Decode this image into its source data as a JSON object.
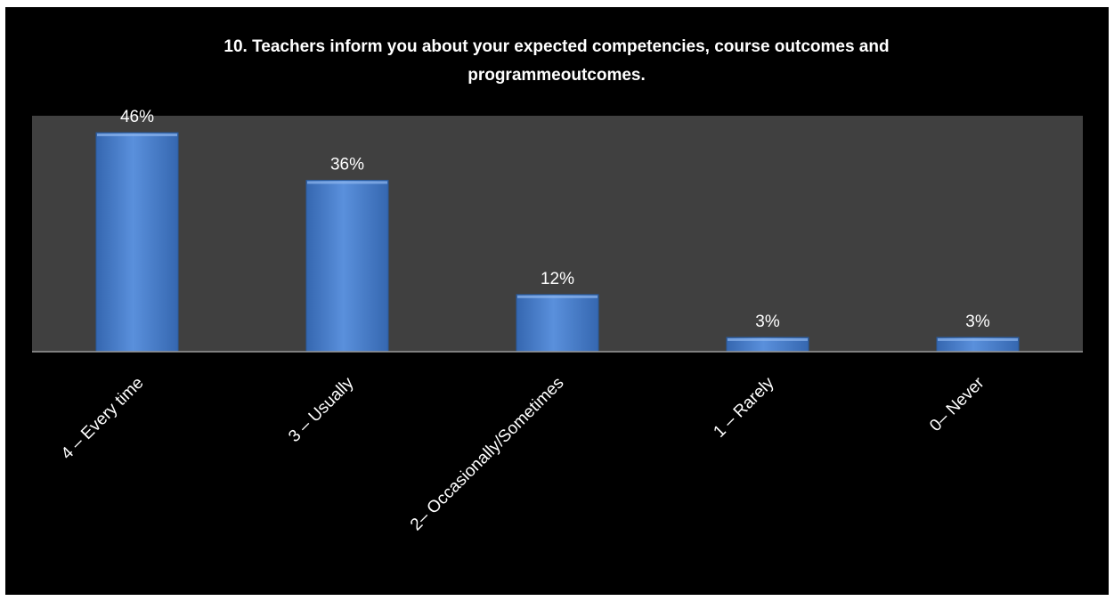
{
  "chart_data": {
    "type": "bar",
    "title": "10. Teachers inform you about your expected competencies, course outcomes and programmeoutcomes.",
    "title_lines": [
      "10. Teachers inform you about your expected competencies, course outcomes and",
      "programmeoutcomes."
    ],
    "categories": [
      "4 – Every time",
      "3 – Usually",
      "2– Occasionally/Sometimes",
      "1 – Rarely",
      "0– Never"
    ],
    "values": [
      46,
      36,
      12,
      3,
      3
    ],
    "value_labels": [
      "46%",
      "36%",
      "12%",
      "3%",
      "3%"
    ],
    "unit": "%",
    "xlabel": "",
    "ylabel": "",
    "ylim": [
      0,
      46
    ],
    "grid": false,
    "legend": "none",
    "colors": {
      "background": "#000000",
      "plot_area": "#404040",
      "bar": "#4a7fcc",
      "bar_edge": "#2a5a9a",
      "text": "#ffffff",
      "axis": "#9a9a9a"
    }
  }
}
